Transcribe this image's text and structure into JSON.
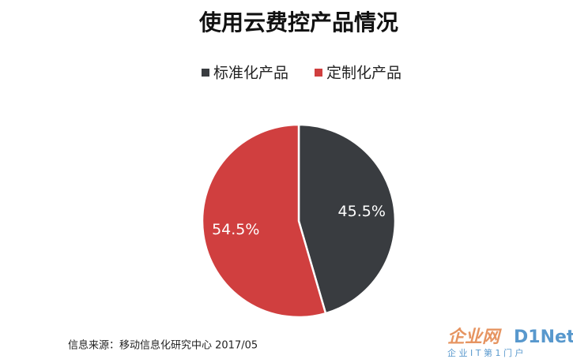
{
  "chart_data": {
    "type": "pie",
    "title": "使用云费控产品情况",
    "categories": [
      "标准化产品",
      "定制化产品"
    ],
    "values": [
      45.5,
      54.5
    ],
    "value_labels": [
      "45.5%",
      "54.5%"
    ],
    "colors": [
      "#393c40",
      "#d03f3f"
    ],
    "legend": "top"
  },
  "source": "信息来源：移动信息化研究中心 2017/05",
  "watermark": {
    "logo": "企业网",
    "brand": "D1Net",
    "slogan": "企 业 I T 第 1 门 户"
  }
}
